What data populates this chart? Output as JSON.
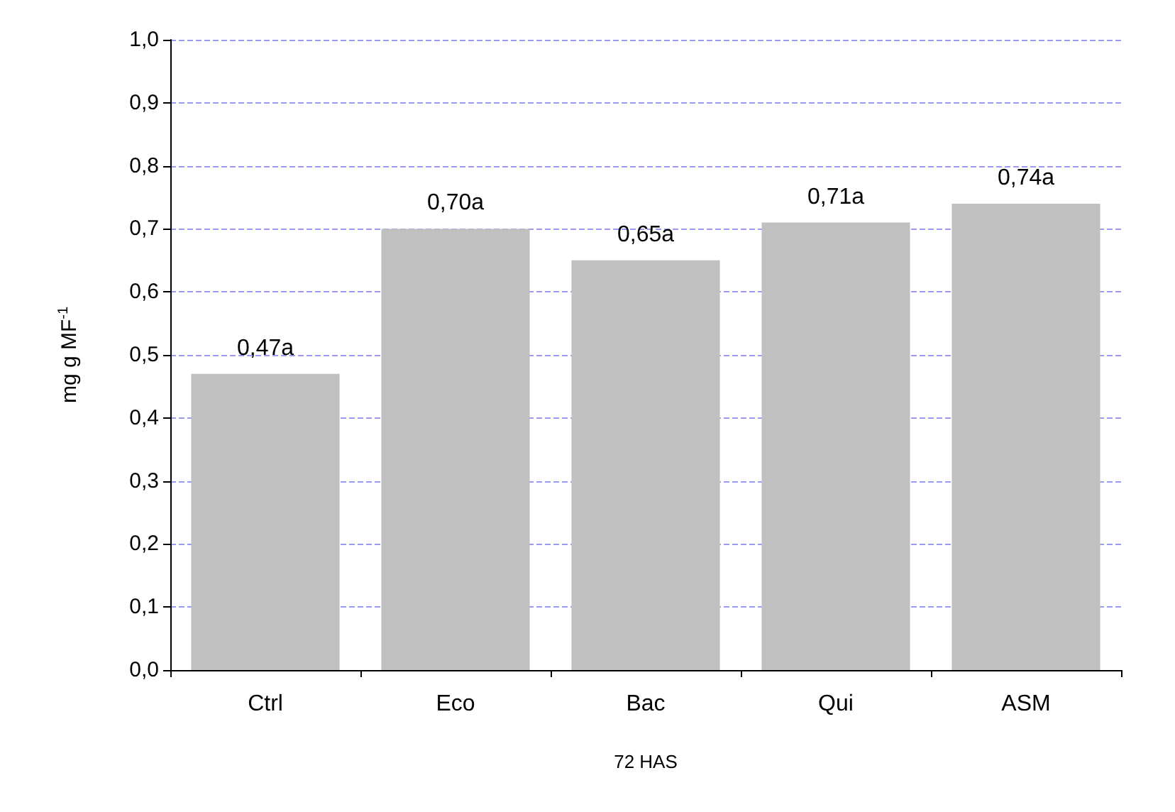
{
  "chart_data": {
    "type": "bar",
    "xlabel": "72 HAS",
    "ylabel": "mg g MF$^{-1}$",
    "categories": [
      "Ctrl",
      "Eco",
      "Bac",
      "Qui",
      "ASM"
    ],
    "values": [
      0.47,
      0.7,
      0.65,
      0.71,
      0.74
    ],
    "value_labels": [
      "0,47a",
      "0,70a",
      "0,65a",
      "0,71a",
      "0,74a"
    ],
    "color": "#c0c0c0",
    "ylim": [
      0,
      1
    ],
    "yticks": [
      {
        "value": 0,
        "label": "0,0"
      },
      {
        "value": 0.1,
        "label": "0,1"
      },
      {
        "value": 0.2,
        "label": "0,2"
      },
      {
        "value": 0.3,
        "label": "0,3"
      },
      {
        "value": 0.4,
        "label": "0,4"
      },
      {
        "value": 0.5,
        "label": "0,5"
      },
      {
        "value": 0.6,
        "label": "0,6"
      },
      {
        "value": 0.7,
        "label": "0,7"
      },
      {
        "value": 0.8,
        "label": "0,8"
      },
      {
        "value": 0.9,
        "label": "0,9"
      },
      {
        "value": 1,
        "label": "1,0"
      }
    ],
    "grid": "y"
  }
}
